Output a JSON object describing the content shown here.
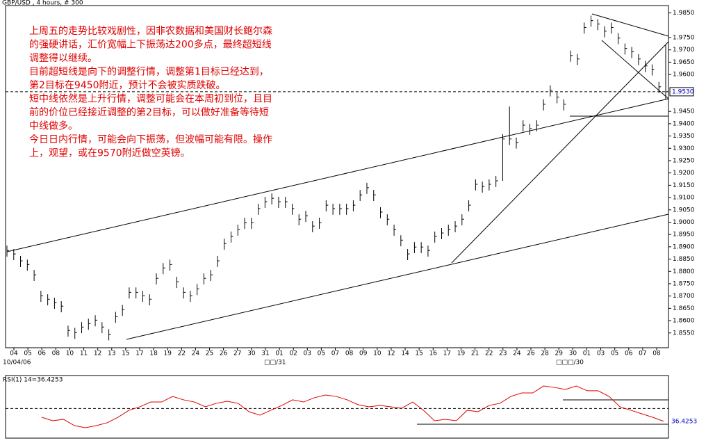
{
  "chart_data": [
    {
      "type": "ohlc",
      "title": "GBP/USD , 4 hours, # 300",
      "annotation": [
        "上周五的走势比较戏剧性，因非农数据和美国财长鲍尔森",
        "的强硬讲话，汇价宽幅上下振荡达200多点，最终超短线",
        "调整得以继续。",
        "目前超短线是向下的调整行情，调整第1目标已经达到，",
        "第2目标在9450附近，预计不会被实质跌破。",
        "短中线依然是上升行情，调整可能会在本周初到位，且目",
        "前的价位已经接近调整的第2目标，可以做好准备等待短",
        "中线做多。",
        "今日日内行情，可能会向下振荡，但波幅可能有限。操作",
        "上，观望，或在9570附近做空英镑。"
      ],
      "x_labels": [
        "04",
        "05",
        "06",
        "08",
        "10",
        "11",
        "12",
        "13",
        "15",
        "17",
        "18",
        "19",
        "22",
        "24",
        "25",
        "26",
        "27",
        "30",
        "31",
        "01",
        "02",
        "03",
        "05",
        "07",
        "08",
        "09",
        "10",
        "12",
        "14",
        "15",
        "16",
        "17",
        "19",
        "21",
        "22",
        "23",
        "24",
        "26",
        "28",
        "29",
        "30",
        "01",
        "03",
        "05",
        "06",
        "07",
        "08"
      ],
      "period_labels": [
        "10/04/06",
        "□□/31",
        "□□□/30"
      ],
      "high": [
        1.8905,
        1.8891,
        1.8863,
        1.8848,
        1.8806,
        1.8721,
        1.8707,
        1.8693,
        1.8679,
        1.858,
        1.8571,
        1.8594,
        1.8608,
        1.8622,
        1.8594,
        1.8565,
        1.8636,
        1.8664,
        1.8735,
        1.8735,
        1.8721,
        1.8707,
        1.8792,
        1.8834,
        1.8848,
        1.8778,
        1.8735,
        1.8721,
        1.8749,
        1.8792,
        1.8806,
        1.8863,
        1.8933,
        1.8962,
        1.899,
        1.9018,
        1.9018,
        1.9075,
        1.9103,
        1.9117,
        1.9103,
        1.9103,
        1.9075,
        1.9032,
        1.9046,
        1.9004,
        1.9018,
        1.9089,
        1.9075,
        1.9075,
        1.9075,
        1.9089,
        1.9131,
        1.916,
        1.9131,
        1.9061,
        1.9032,
        1.899,
        1.8947,
        1.8891,
        1.8919,
        1.8919,
        1.8905,
        1.8962,
        1.8976,
        1.899,
        1.9004,
        1.9032,
        1.9089,
        1.9174,
        1.9165,
        1.9174,
        1.9188,
        1.9358,
        1.947,
        1.9344,
        1.9414,
        1.94,
        1.9414,
        1.9499,
        1.9556,
        1.9528,
        1.9499,
        1.9697,
        1.9683,
        1.9811,
        1.9839,
        1.9825,
        1.9796,
        1.9811,
        1.9768,
        1.9726,
        1.9712,
        1.9683,
        1.9655,
        1.9641,
        1.957,
        1.972
      ],
      "low": [
        1.886,
        1.8846,
        1.8818,
        1.8803,
        1.8761,
        1.8676,
        1.8662,
        1.8648,
        1.8634,
        1.8535,
        1.8526,
        1.8549,
        1.8563,
        1.8577,
        1.8549,
        1.852,
        1.8591,
        1.8619,
        1.869,
        1.869,
        1.8676,
        1.8662,
        1.8747,
        1.8789,
        1.8803,
        1.8733,
        1.869,
        1.8676,
        1.8704,
        1.8747,
        1.8761,
        1.8818,
        1.8888,
        1.8917,
        1.8945,
        1.8973,
        1.8973,
        1.903,
        1.9058,
        1.9072,
        1.9058,
        1.9058,
        1.903,
        1.8987,
        1.9001,
        1.8959,
        1.8973,
        1.9044,
        1.903,
        1.903,
        1.903,
        1.9044,
        1.9086,
        1.9115,
        1.9086,
        1.9016,
        1.8987,
        1.8945,
        1.8902,
        1.8846,
        1.8874,
        1.8874,
        1.886,
        1.8917,
        1.8931,
        1.8945,
        1.8959,
        1.8987,
        1.9044,
        1.9129,
        1.912,
        1.9129,
        1.9143,
        1.9168,
        1.9313,
        1.9299,
        1.9369,
        1.9355,
        1.9369,
        1.9454,
        1.9511,
        1.9483,
        1.9454,
        1.9652,
        1.9638,
        1.9766,
        1.9794,
        1.978,
        1.9751,
        1.9766,
        1.9723,
        1.9681,
        1.9667,
        1.9638,
        1.961,
        1.9596,
        1.9525,
        1.95
      ],
      "close": [
        1.8885,
        1.8871,
        1.8843,
        1.8828,
        1.8786,
        1.8701,
        1.8687,
        1.8673,
        1.8659,
        1.856,
        1.8551,
        1.8574,
        1.8588,
        1.8602,
        1.8574,
        1.8545,
        1.8616,
        1.8644,
        1.8715,
        1.8715,
        1.8701,
        1.8687,
        1.8772,
        1.8814,
        1.8828,
        1.8758,
        1.8715,
        1.8701,
        1.8729,
        1.8772,
        1.8786,
        1.8843,
        1.8913,
        1.8942,
        1.897,
        1.8998,
        1.8998,
        1.9055,
        1.9083,
        1.9097,
        1.9083,
        1.9083,
        1.9055,
        1.9012,
        1.9026,
        1.8984,
        1.8998,
        1.9069,
        1.9055,
        1.9055,
        1.9055,
        1.9069,
        1.9111,
        1.914,
        1.9111,
        1.9041,
        1.9012,
        1.897,
        1.8927,
        1.8871,
        1.8899,
        1.8899,
        1.8885,
        1.8942,
        1.8956,
        1.897,
        1.8984,
        1.9012,
        1.9069,
        1.9154,
        1.9145,
        1.9154,
        1.9168,
        1.9338,
        1.9338,
        1.9324,
        1.9394,
        1.938,
        1.9394,
        1.9479,
        1.9536,
        1.9508,
        1.9479,
        1.9677,
        1.9663,
        1.9791,
        1.9819,
        1.9805,
        1.9776,
        1.9791,
        1.9748,
        1.9706,
        1.9692,
        1.9663,
        1.9635,
        1.9621,
        1.955,
        1.953
      ],
      "current_price": {
        "value": 1.953,
        "label": "1.9530"
      },
      "ylim": [
        1.849,
        1.988
      ],
      "yticks": [
        {
          "value": 1.855,
          "label": "1.8550"
        },
        {
          "value": 1.86,
          "label": "1.8600"
        },
        {
          "value": 1.865,
          "label": "1.8650"
        },
        {
          "value": 1.87,
          "label": "1.8700"
        },
        {
          "value": 1.875,
          "label": "1.8750"
        },
        {
          "value": 1.88,
          "label": "1.8800"
        },
        {
          "value": 1.885,
          "label": "1.8850"
        },
        {
          "value": 1.89,
          "label": "1.8900"
        },
        {
          "value": 1.895,
          "label": "1.8950"
        },
        {
          "value": 1.9,
          "label": "1.9000"
        },
        {
          "value": 1.905,
          "label": "1.9050"
        },
        {
          "value": 1.91,
          "label": "1.9100"
        },
        {
          "value": 1.915,
          "label": "1.9150"
        },
        {
          "value": 1.92,
          "label": "1.9200"
        },
        {
          "value": 1.925,
          "label": "1.9250"
        },
        {
          "value": 1.93,
          "label": "1.9300"
        },
        {
          "value": 1.935,
          "label": "1.9350"
        },
        {
          "value": 1.94,
          "label": "1.9400"
        },
        {
          "value": 1.945,
          "label": "1.9450"
        },
        {
          "value": 1.96,
          "label": "1.9600"
        },
        {
          "value": 1.965,
          "label": "1.9650"
        },
        {
          "value": 1.97,
          "label": "1.9700"
        },
        {
          "value": 1.975,
          "label": "1.9750"
        },
        {
          "value": 1.985,
          "label": "1.9850"
        }
      ],
      "color": "#000000",
      "annotation_color": "#e00000"
    },
    {
      "type": "line",
      "title": "RSI(1) 14=36.4253",
      "values": [
        40.7,
        37.0,
        38.5,
        31.8,
        29.6,
        31.8,
        34.8,
        40.7,
        48.1,
        51.8,
        56.9,
        56.9,
        62.8,
        59.2,
        56.9,
        51.8,
        55.5,
        57.7,
        55.5,
        46.6,
        42.9,
        48.1,
        53.2,
        59.2,
        56.9,
        61.4,
        64.3,
        62.8,
        59.2,
        54.0,
        51.8,
        53.2,
        51.8,
        50.3,
        56.9,
        48.1,
        37.0,
        38.5,
        37.0,
        48.1,
        46.6,
        53.2,
        55.5,
        62.8,
        66.5,
        66.5,
        73.9,
        72.4,
        70.2,
        73.9,
        68.8,
        68.8,
        62.8,
        51.8,
        48.1,
        44.4,
        40.7,
        36.4253
      ],
      "last_label": "36.4253",
      "level": 50,
      "ylim": [
        20,
        85
      ],
      "color": "#e00000"
    }
  ]
}
